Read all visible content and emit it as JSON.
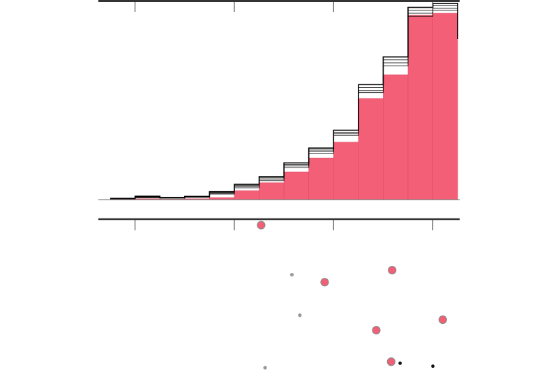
{
  "colors": {
    "bar_fill": "#f25f76",
    "bar_divider": "#e04a62",
    "step_line": "#000000",
    "axis": "#333333",
    "background": "#ffffff",
    "scatter_pink": "#f25f76",
    "scatter_gray": "#999999",
    "scatter_black": "#111111"
  },
  "chart_data": [
    {
      "type": "bar",
      "subtype": "histogram-with-step-overlays",
      "title": "",
      "xlabel": "",
      "ylabel": "",
      "xlim": [
        -1.37,
        2.27
      ],
      "ylim": [
        0,
        1.0
      ],
      "x_ticks": [
        -1,
        0,
        1,
        2
      ],
      "tick_labels_shown": false,
      "bin_edges": [
        -1.25,
        -1.0,
        -0.75,
        -0.5,
        -0.25,
        0.0,
        0.25,
        0.5,
        0.75,
        1.0,
        1.25,
        1.5,
        1.75,
        2.0,
        2.25
      ],
      "values": [
        0.004,
        0.004,
        0.002,
        0.004,
        0.01,
        0.045,
        0.085,
        0.14,
        0.21,
        0.29,
        0.51,
        0.63,
        0.93,
        0.94,
        0.81
      ],
      "overlay_step_series": [
        {
          "values": [
            0.006,
            0.017,
            0.011,
            0.016,
            0.04,
            0.077,
            0.116,
            0.185,
            0.26,
            0.35,
            0.58,
            0.72,
            0.97,
            0.99,
            0.81
          ]
        },
        {
          "values": [
            0.005,
            0.014,
            0.009,
            0.014,
            0.036,
            0.072,
            0.11,
            0.178,
            0.25,
            0.34,
            0.565,
            0.705,
            0.955,
            0.98,
            0.81
          ]
        },
        {
          "values": [
            0.005,
            0.011,
            0.008,
            0.013,
            0.032,
            0.066,
            0.103,
            0.17,
            0.242,
            0.332,
            0.55,
            0.69,
            0.94,
            0.965,
            0.81
          ]
        },
        {
          "values": [
            0.004,
            0.009,
            0.007,
            0.012,
            0.028,
            0.06,
            0.096,
            0.162,
            0.234,
            0.322,
            0.54,
            0.675,
            0.925,
            0.955,
            0.81
          ]
        }
      ],
      "extends_beyond_view": true,
      "grid": false,
      "legend": "none"
    },
    {
      "type": "scatter",
      "title": "",
      "xlabel": "",
      "ylabel": "",
      "xlim": [
        -1.37,
        2.27
      ],
      "ylim": [
        0,
        1.0
      ],
      "x_ticks": [
        -1,
        0,
        1,
        2
      ],
      "tick_labels_shown": false,
      "grid": false,
      "legend": "none",
      "series": [
        {
          "style": "pink",
          "points": [
            [
              0.27,
              0.96
            ],
            [
              0.91,
              0.58
            ],
            [
              1.59,
              0.66
            ],
            [
              1.43,
              0.26
            ],
            [
              2.1,
              0.33
            ],
            [
              1.58,
              0.05
            ]
          ]
        },
        {
          "style": "gray",
          "points": [
            [
              0.58,
              0.63
            ],
            [
              0.66,
              0.36
            ],
            [
              0.31,
              0.01
            ]
          ]
        },
        {
          "style": "black",
          "points": [
            [
              1.67,
              0.04
            ],
            [
              2.0,
              0.02
            ]
          ]
        }
      ]
    }
  ]
}
